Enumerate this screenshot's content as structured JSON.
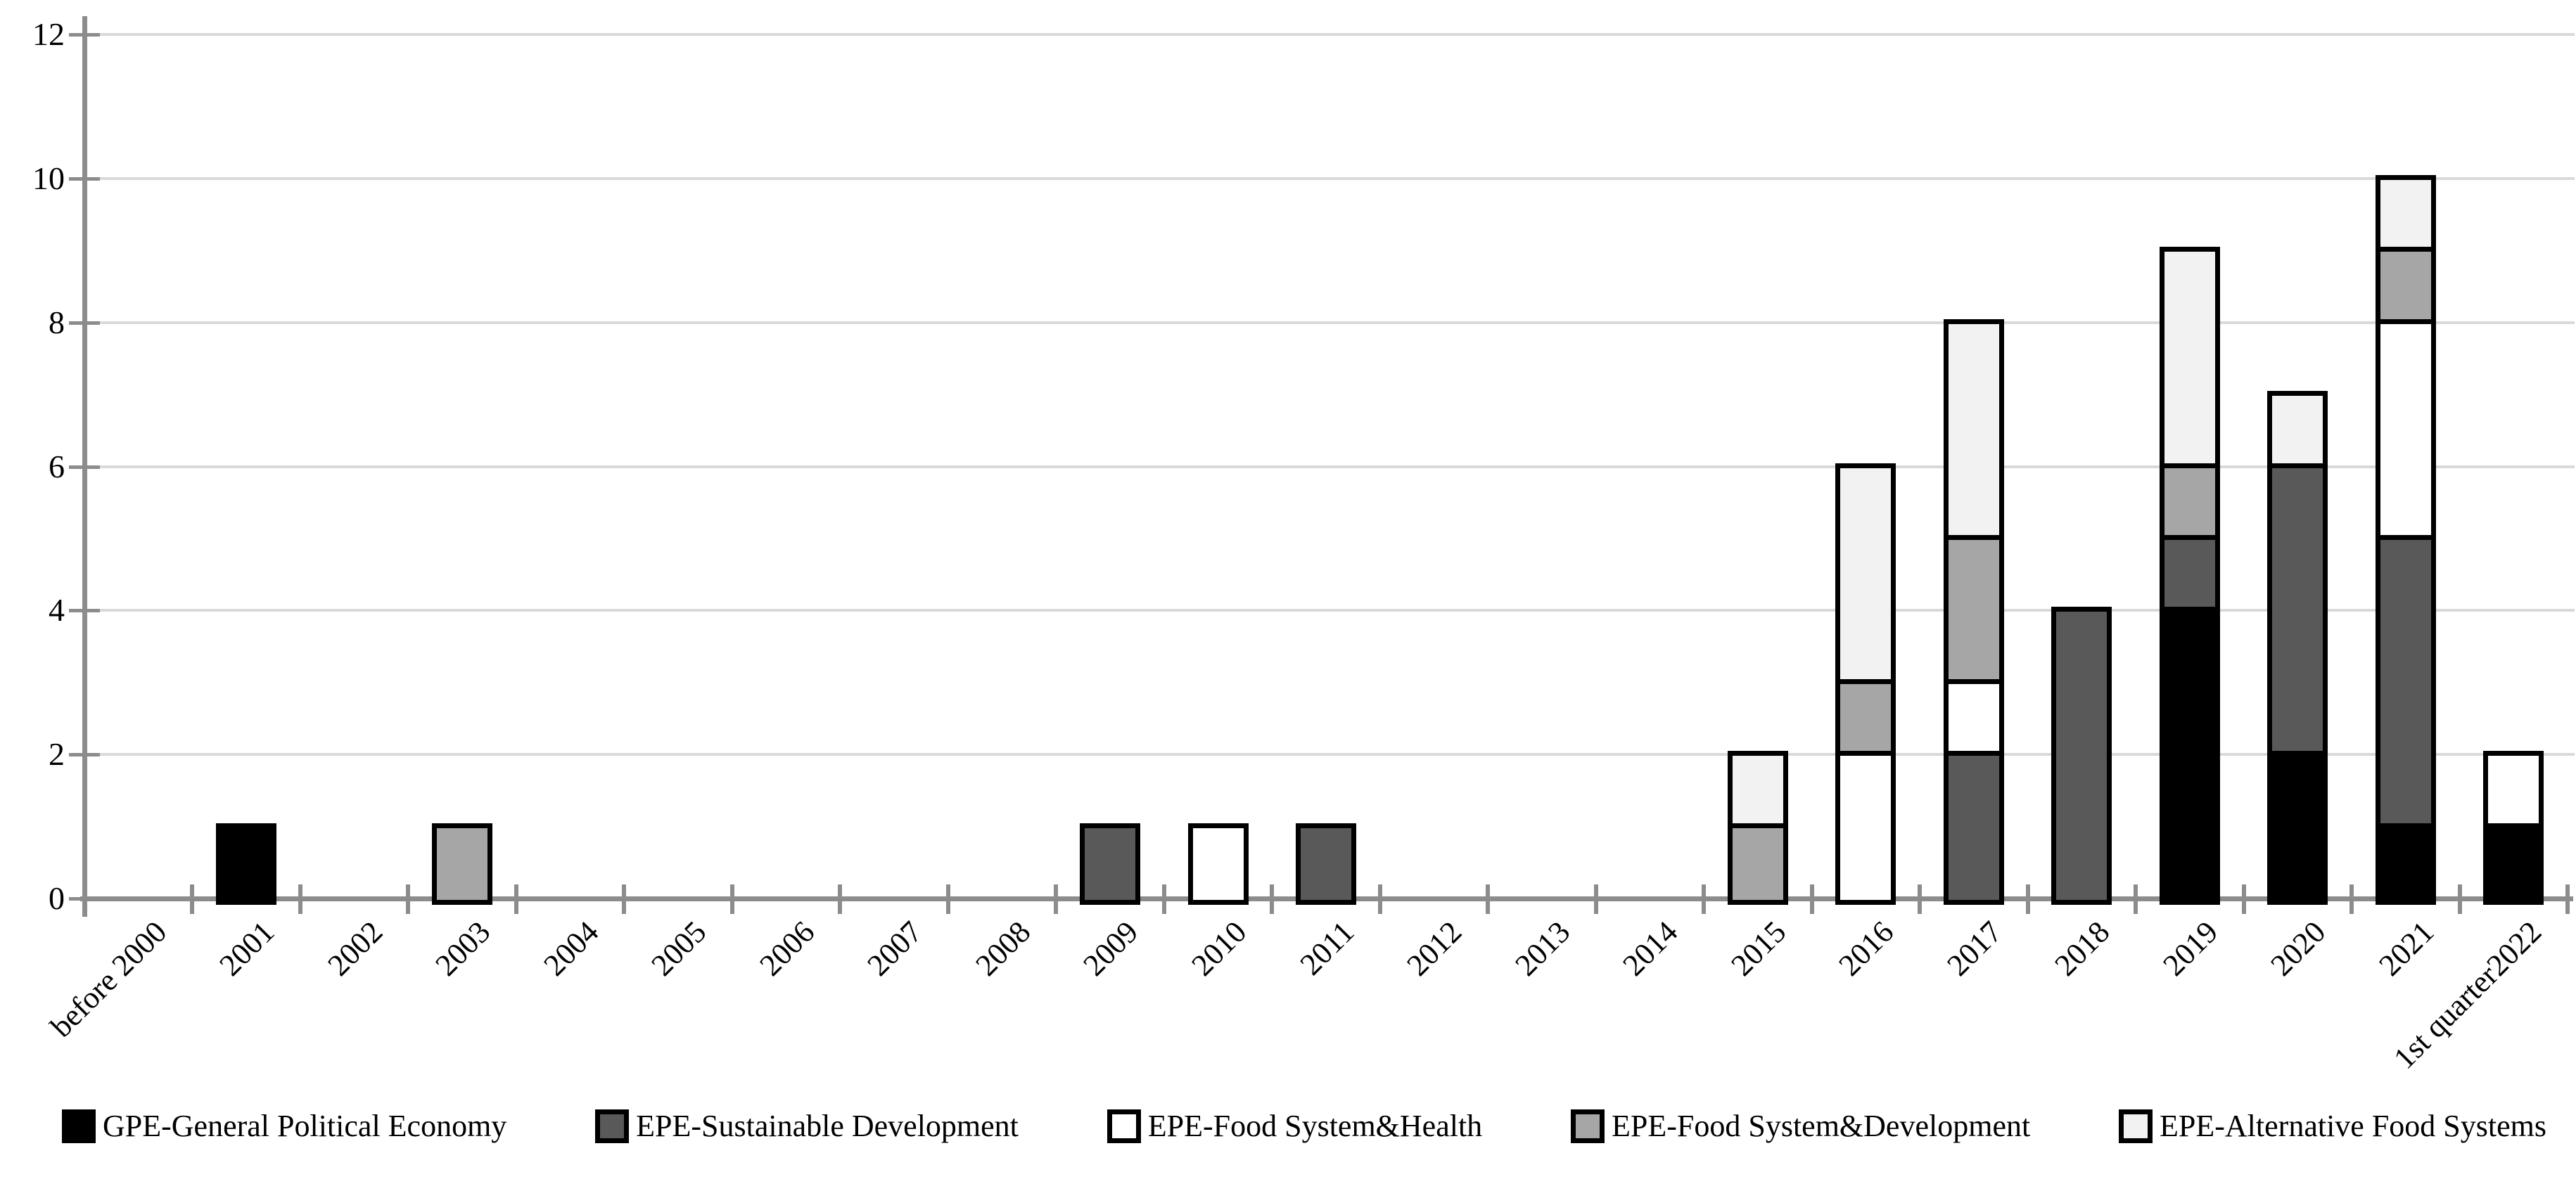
{
  "chart_data": {
    "type": "bar",
    "stacked": true,
    "title": "",
    "categories": [
      "before 2000",
      "2001",
      "2002",
      "2003",
      "2004",
      "2005",
      "2006",
      "2007",
      "2008",
      "2009",
      "2010",
      "2011",
      "2012",
      "2013",
      "2014",
      "2015",
      "2016",
      "2017",
      "2018",
      "2019",
      "2020",
      "2021",
      "1st quarter2022"
    ],
    "series": [
      {
        "name": "GPE-General Political Economy",
        "color": "#000000",
        "values": [
          0,
          1,
          0,
          0,
          0,
          0,
          0,
          0,
          0,
          0,
          0,
          0,
          0,
          0,
          0,
          0,
          0,
          0,
          0,
          4,
          2,
          1,
          1
        ]
      },
      {
        "name": "EPE-Sustainable Development",
        "color": "#595959",
        "values": [
          0,
          0,
          0,
          0,
          0,
          0,
          0,
          0,
          0,
          1,
          0,
          1,
          0,
          0,
          0,
          0,
          0,
          2,
          4,
          1,
          4,
          4,
          0
        ]
      },
      {
        "name": "EPE-Food System&Health",
        "color": "#ffffff",
        "values": [
          0,
          0,
          0,
          0,
          0,
          0,
          0,
          0,
          0,
          0,
          1,
          0,
          0,
          0,
          0,
          0,
          2,
          1,
          0,
          0,
          0,
          3,
          1
        ]
      },
      {
        "name": "EPE-Food System&Development",
        "color": "#a6a6a6",
        "values": [
          0,
          0,
          0,
          1,
          0,
          0,
          0,
          0,
          0,
          0,
          0,
          0,
          0,
          0,
          0,
          1,
          1,
          2,
          0,
          1,
          0,
          1,
          0
        ]
      },
      {
        "name": "EPE-Alternative Food Systems",
        "color": "#f2f2f2",
        "values": [
          0,
          0,
          0,
          0,
          0,
          0,
          0,
          0,
          0,
          0,
          0,
          0,
          0,
          0,
          0,
          1,
          3,
          3,
          0,
          3,
          1,
          1,
          0
        ]
      }
    ],
    "y_axis": {
      "min": 0,
      "max": 12,
      "tick_step": 2,
      "ticks": [
        0,
        2,
        4,
        6,
        8,
        10,
        12
      ],
      "label": ""
    },
    "x_axis": {
      "label": "",
      "tick_label_rotation_deg": -45
    },
    "legend_position": "bottom",
    "grid": true,
    "colors": {
      "axis": "#8c8c8c",
      "gridline": "#d9d9d9",
      "bar_border": "#000000",
      "background": "#ffffff"
    }
  }
}
